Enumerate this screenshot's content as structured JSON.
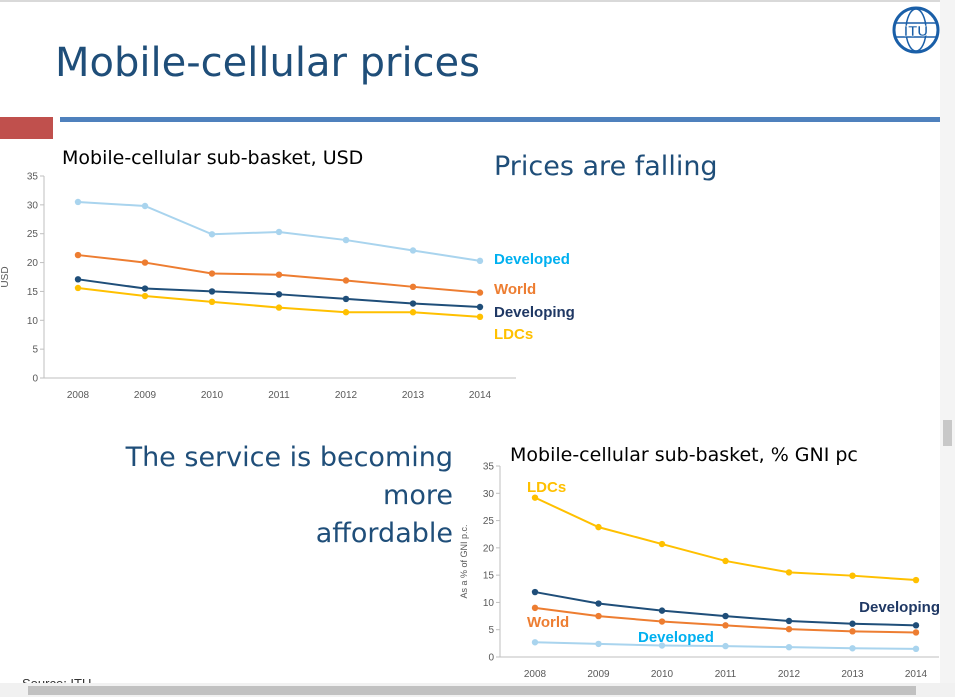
{
  "slide": {
    "title": "Mobile-cellular prices",
    "headline_top": "Prices are falling",
    "headline_bottom_line1": "The service is becoming more",
    "headline_bottom_line2": "affordable",
    "source": "Source: ITU",
    "logo_text": "ITU"
  },
  "colors": {
    "developed": "#a9d4ee",
    "world": "#ed7d31",
    "developing": "#1f4e79",
    "ldcs": "#ffc000",
    "developed_label": "#00b0f0",
    "world_label": "#ed7d31",
    "developing_label": "#1f3864",
    "ldcs_label": "#ffc000"
  },
  "chart_data": [
    {
      "type": "line",
      "title": "Mobile-cellular sub-basket, USD",
      "xlabel": "",
      "ylabel": "USD",
      "categories": [
        "2008",
        "2009",
        "2010",
        "2011",
        "2012",
        "2013",
        "2014"
      ],
      "ylim": [
        0,
        35
      ],
      "yticks": [
        0,
        5,
        10,
        15,
        20,
        25,
        30,
        35
      ],
      "grid": false,
      "series": [
        {
          "key": "developed",
          "name": "Developed",
          "values": [
            30.5,
            29.8,
            24.9,
            25.3,
            23.9,
            22.1,
            20.3
          ]
        },
        {
          "key": "world",
          "name": "World",
          "values": [
            21.3,
            20.0,
            18.1,
            17.9,
            16.9,
            15.8,
            14.8
          ]
        },
        {
          "key": "developing",
          "name": "Developing",
          "values": [
            17.1,
            15.5,
            15.0,
            14.5,
            13.7,
            12.9,
            12.3
          ]
        },
        {
          "key": "ldcs",
          "name": "LDCs",
          "values": [
            15.6,
            14.2,
            13.2,
            12.2,
            11.4,
            11.4,
            10.6
          ]
        }
      ]
    },
    {
      "type": "line",
      "title": "Mobile-cellular sub-basket, % GNI pc",
      "xlabel": "",
      "ylabel": "As a % of GNI p.c.",
      "categories": [
        "2008",
        "2009",
        "2010",
        "2011",
        "2012",
        "2013",
        "2014"
      ],
      "ylim": [
        0,
        35
      ],
      "yticks": [
        0,
        5,
        10,
        15,
        20,
        25,
        30,
        35
      ],
      "grid": false,
      "series": [
        {
          "key": "ldcs",
          "name": "LDCs",
          "values": [
            29.2,
            23.8,
            20.7,
            17.6,
            15.5,
            14.9,
            14.1
          ]
        },
        {
          "key": "developing",
          "name": "Developing",
          "values": [
            11.9,
            9.8,
            8.5,
            7.5,
            6.6,
            6.1,
            5.8
          ]
        },
        {
          "key": "world",
          "name": "World",
          "values": [
            9.0,
            7.5,
            6.5,
            5.8,
            5.1,
            4.7,
            4.5
          ]
        },
        {
          "key": "developed",
          "name": "Developed",
          "values": [
            2.7,
            2.4,
            2.1,
            2.0,
            1.8,
            1.6,
            1.5
          ]
        }
      ]
    }
  ]
}
